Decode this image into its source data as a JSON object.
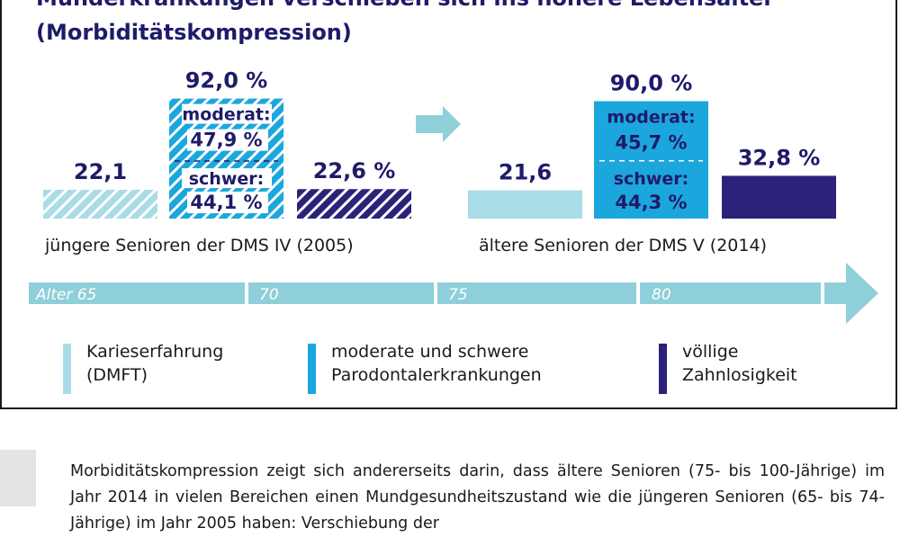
{
  "title": {
    "line1": "Munderkrankungen verschieben sich ins höhere Lebensalter",
    "line2": "(Morbiditätskompression)"
  },
  "chart_data": {
    "type": "bar",
    "groups": [
      {
        "label": "jüngere Senioren der DMS IV (2005)",
        "bars": [
          {
            "series": "Karieserfahrung (DMFT)",
            "value": 22.1,
            "label": "22,1",
            "pattern": "hatched"
          },
          {
            "series": "moderate und schwere Parodontalerkrankungen",
            "value": 92.0,
            "label": "92,0 %",
            "pattern": "hatched",
            "segments": [
              {
                "name": "moderat:",
                "value": 47.9,
                "label": "47,9 %"
              },
              {
                "name": "schwer:",
                "value": 44.1,
                "label": "44,1 %"
              }
            ]
          },
          {
            "series": "völlige Zahnlosigkeit",
            "value": 22.6,
            "label": "22,6 %",
            "pattern": "hatched"
          }
        ]
      },
      {
        "label": "ältere Senioren der DMS V (2014)",
        "bars": [
          {
            "series": "Karieserfahrung (DMFT)",
            "value": 21.6,
            "label": "21,6",
            "pattern": "solid"
          },
          {
            "series": "moderate und schwere Parodontalerkrankungen",
            "value": 90.0,
            "label": "90,0 %",
            "pattern": "solid",
            "segments": [
              {
                "name": "moderat:",
                "value": 45.7,
                "label": "45,7 %"
              },
              {
                "name": "schwer:",
                "value": 44.3,
                "label": "44,3 %"
              }
            ]
          },
          {
            "series": "völlige Zahnlosigkeit",
            "value": 32.8,
            "label": "32,8 %",
            "pattern": "solid"
          }
        ]
      }
    ],
    "age_axis": {
      "label": "Alter",
      "ticks": [
        "65",
        "70",
        "75",
        "80"
      ]
    },
    "legend": [
      {
        "line1": "Karieserfahrung",
        "line2": "(DMFT)",
        "color": "#a9dce6"
      },
      {
        "line1": "moderate und schwere",
        "line2": "Parodontalerkrankungen",
        "color": "#1ba7dd"
      },
      {
        "line1": "völlige",
        "line2": "Zahnlosigkeit",
        "color": "#2b237a"
      }
    ],
    "colors": {
      "light": "#a9dce6",
      "medium": "#1ba7dd",
      "dark": "#2b237a",
      "label": "#1e1b6a",
      "arrow": "#8ecfd9"
    }
  },
  "paragraph": "Morbiditätskompression zeigt sich andererseits darin, dass ältere Senioren (75- bis 100-Jährige) im Jahr 2014 in vielen Bereichen einen Mundgesundheitszustand wie die jüngeren Senioren (65- bis 74-Jährige) im Jahr 2005 haben: Verschiebung der"
}
